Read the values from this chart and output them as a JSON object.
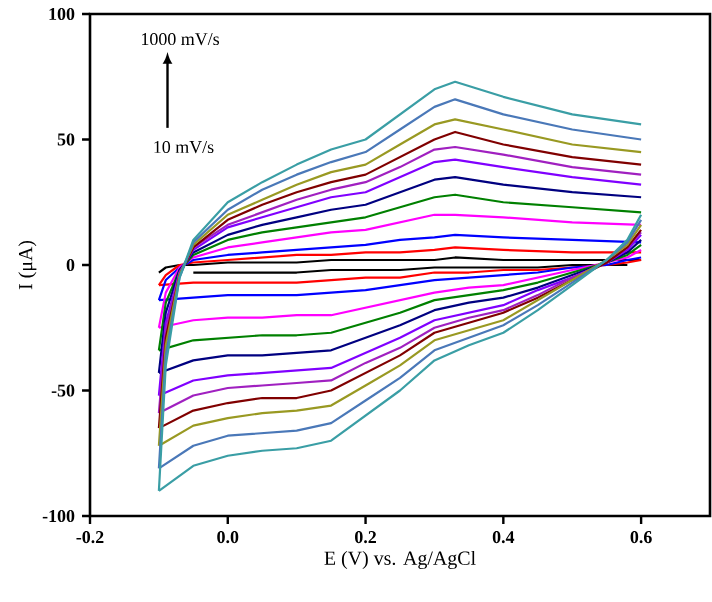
{
  "chart_data": {
    "type": "line",
    "xlabel": "E (V) vs. Ag/AgCl",
    "ylabel": "I (μA)",
    "annotations": [
      "1000 mV/s",
      "10 mV/s"
    ],
    "xlim": [
      -0.2,
      0.7
    ],
    "xticks": [
      {
        "value": -0.2,
        "label": "-0.2"
      },
      {
        "value": 0.0,
        "label": "0.0"
      },
      {
        "value": 0.2,
        "label": "0.2"
      },
      {
        "value": 0.4,
        "label": "0.4"
      },
      {
        "value": 0.6,
        "label": "0.6"
      }
    ],
    "ylim": [
      -100,
      100
    ],
    "yticks": [
      -100,
      -50,
      0,
      50,
      100
    ],
    "grid": false,
    "marker": "none",
    "line_style": "solid",
    "series": [
      {
        "color": "#000000",
        "x": [
          -0.1,
          -0.09,
          -0.07,
          -0.05,
          0,
          0.05,
          0.1,
          0.15,
          0.2,
          0.25,
          0.3,
          0.33,
          0.4,
          0.5,
          0.6
        ],
        "values": [
          -3,
          -1,
          0,
          0,
          1,
          1,
          1,
          2,
          2,
          2,
          2,
          3,
          2,
          2,
          2
        ]
      },
      {
        "color": "#000000",
        "x": [
          -0.05,
          0,
          0.05,
          0.1,
          0.15,
          0.2,
          0.25,
          0.3,
          0.35,
          0.4,
          0.45,
          0.5,
          0.55,
          0.58
        ],
        "values": [
          -3,
          -3,
          -3,
          -3,
          -2,
          -2,
          -2,
          -1,
          -1,
          -1,
          -1,
          0,
          0,
          0
        ]
      },
      {
        "color": "#ff0000",
        "x": [
          -0.1,
          -0.09,
          -0.07,
          -0.05,
          0,
          0.05,
          0.1,
          0.15,
          0.2,
          0.25,
          0.3,
          0.33,
          0.4,
          0.5,
          0.6
        ],
        "values": [
          -8,
          -4,
          0,
          1,
          2,
          3,
          4,
          4,
          5,
          5,
          6,
          7,
          6,
          5,
          5
        ]
      },
      {
        "color": "#ff0000",
        "x": [
          -0.1,
          -0.05,
          0,
          0.05,
          0.1,
          0.15,
          0.2,
          0.25,
          0.3,
          0.35,
          0.4,
          0.45,
          0.5,
          0.55,
          0.58,
          0.6
        ],
        "values": [
          -8,
          -7,
          -7,
          -7,
          -7,
          -6,
          -5,
          -5,
          -3,
          -3,
          -2,
          -2,
          -1,
          0,
          1,
          2
        ]
      },
      {
        "color": "#0000ff",
        "x": [
          -0.1,
          -0.09,
          -0.07,
          -0.05,
          0,
          0.05,
          0.1,
          0.15,
          0.2,
          0.25,
          0.3,
          0.33,
          0.4,
          0.5,
          0.6
        ],
        "values": [
          -14,
          -6,
          -1,
          2,
          4,
          5,
          6,
          7,
          8,
          10,
          11,
          12,
          11,
          10,
          9
        ]
      },
      {
        "color": "#0000ff",
        "x": [
          -0.1,
          -0.05,
          0,
          0.05,
          0.1,
          0.15,
          0.2,
          0.25,
          0.3,
          0.35,
          0.4,
          0.45,
          0.5,
          0.55,
          0.58,
          0.6
        ],
        "values": [
          -14,
          -13,
          -12,
          -12,
          -12,
          -11,
          -10,
          -8,
          -6,
          -5,
          -4,
          -3,
          -1,
          0,
          2,
          3
        ]
      },
      {
        "color": "#ff00ff",
        "x": [
          -0.1,
          -0.09,
          -0.07,
          -0.05,
          0,
          0.05,
          0.1,
          0.15,
          0.2,
          0.25,
          0.3,
          0.33,
          0.4,
          0.5,
          0.6
        ],
        "values": [
          -25,
          -11,
          -1,
          3,
          7,
          9,
          11,
          13,
          14,
          17,
          20,
          20,
          19,
          17,
          16
        ]
      },
      {
        "color": "#ff00ff",
        "x": [
          -0.1,
          -0.05,
          0,
          0.05,
          0.1,
          0.15,
          0.2,
          0.25,
          0.3,
          0.35,
          0.4,
          0.45,
          0.5,
          0.55,
          0.58,
          0.6
        ],
        "values": [
          -25,
          -22,
          -21,
          -21,
          -20,
          -20,
          -17,
          -14,
          -11,
          -9,
          -8,
          -5,
          -2,
          1,
          3,
          6
        ]
      },
      {
        "color": "#008000",
        "x": [
          -0.1,
          -0.09,
          -0.07,
          -0.05,
          0,
          0.05,
          0.1,
          0.15,
          0.2,
          0.25,
          0.3,
          0.33,
          0.4,
          0.5,
          0.6
        ],
        "values": [
          -34,
          -15,
          -2,
          4,
          10,
          13,
          15,
          17,
          19,
          23,
          27,
          28,
          25,
          23,
          21
        ]
      },
      {
        "color": "#008000",
        "x": [
          -0.1,
          -0.05,
          0,
          0.05,
          0.1,
          0.15,
          0.2,
          0.25,
          0.3,
          0.35,
          0.4,
          0.45,
          0.5,
          0.55,
          0.58,
          0.6
        ],
        "values": [
          -34,
          -30,
          -29,
          -28,
          -28,
          -27,
          -23,
          -19,
          -14,
          -12,
          -10,
          -7,
          -3,
          1,
          4,
          8
        ]
      },
      {
        "color": "#000080",
        "x": [
          -0.1,
          -0.09,
          -0.07,
          -0.05,
          0,
          0.05,
          0.1,
          0.15,
          0.2,
          0.25,
          0.3,
          0.33,
          0.4,
          0.5,
          0.6
        ],
        "values": [
          -43,
          -19,
          -2,
          5,
          12,
          16,
          19,
          22,
          24,
          29,
          34,
          35,
          32,
          29,
          27
        ]
      },
      {
        "color": "#000080",
        "x": [
          -0.1,
          -0.05,
          0,
          0.05,
          0.1,
          0.15,
          0.2,
          0.25,
          0.3,
          0.35,
          0.4,
          0.45,
          0.5,
          0.55,
          0.58,
          0.6
        ],
        "values": [
          -43,
          -38,
          -36,
          -36,
          -35,
          -34,
          -29,
          -24,
          -18,
          -15,
          -13,
          -9,
          -4,
          1,
          5,
          10
        ]
      },
      {
        "color": "#8000ff",
        "x": [
          -0.1,
          -0.09,
          -0.07,
          -0.05,
          0,
          0.05,
          0.1,
          0.15,
          0.2,
          0.25,
          0.3,
          0.33,
          0.4,
          0.5,
          0.6
        ],
        "values": [
          -52,
          -23,
          -3,
          6,
          15,
          19,
          23,
          27,
          29,
          35,
          41,
          42,
          39,
          35,
          32
        ]
      },
      {
        "color": "#8000ff",
        "x": [
          -0.1,
          -0.05,
          0,
          0.05,
          0.1,
          0.15,
          0.2,
          0.25,
          0.3,
          0.35,
          0.4,
          0.45,
          0.5,
          0.55,
          0.58,
          0.6
        ],
        "values": [
          -52,
          -46,
          -44,
          -43,
          -42,
          -41,
          -35,
          -29,
          -22,
          -19,
          -16,
          -10,
          -5,
          1,
          6,
          12
        ]
      },
      {
        "color": "#a020c0",
        "x": [
          -0.1,
          -0.09,
          -0.07,
          -0.05,
          0,
          0.05,
          0.1,
          0.15,
          0.2,
          0.25,
          0.3,
          0.33,
          0.4,
          0.5,
          0.6
        ],
        "values": [
          -59,
          -26,
          -3,
          7,
          16,
          21,
          26,
          30,
          33,
          39,
          46,
          47,
          44,
          39,
          36
        ]
      },
      {
        "color": "#a020c0",
        "x": [
          -0.1,
          -0.05,
          0,
          0.05,
          0.1,
          0.15,
          0.2,
          0.25,
          0.3,
          0.35,
          0.4,
          0.45,
          0.5,
          0.55,
          0.58,
          0.6
        ],
        "values": [
          -59,
          -52,
          -49,
          -48,
          -47,
          -46,
          -39,
          -33,
          -25,
          -21,
          -18,
          -12,
          -5,
          1,
          7,
          13
        ]
      },
      {
        "color": "#800000",
        "x": [
          -0.1,
          -0.09,
          -0.07,
          -0.05,
          0,
          0.05,
          0.1,
          0.15,
          0.2,
          0.25,
          0.3,
          0.33,
          0.4,
          0.5,
          0.6
        ],
        "values": [
          -65,
          -29,
          -4,
          7,
          18,
          24,
          29,
          33,
          36,
          43,
          50,
          53,
          48,
          43,
          40
        ]
      },
      {
        "color": "#800000",
        "x": [
          -0.1,
          -0.05,
          0,
          0.05,
          0.1,
          0.15,
          0.2,
          0.25,
          0.3,
          0.35,
          0.4,
          0.45,
          0.5,
          0.55,
          0.58,
          0.6
        ],
        "values": [
          -65,
          -58,
          -55,
          -53,
          -53,
          -50,
          -43,
          -36,
          -27,
          -23,
          -19,
          -13,
          -6,
          1,
          7,
          14
        ]
      },
      {
        "color": "#999922",
        "x": [
          -0.1,
          -0.09,
          -0.07,
          -0.05,
          0,
          0.05,
          0.1,
          0.15,
          0.2,
          0.25,
          0.3,
          0.33,
          0.4,
          0.5,
          0.6
        ],
        "values": [
          -72,
          -32,
          -4,
          8,
          20,
          26,
          32,
          37,
          40,
          48,
          56,
          58,
          54,
          48,
          45
        ]
      },
      {
        "color": "#999922",
        "x": [
          -0.1,
          -0.05,
          0,
          0.05,
          0.1,
          0.15,
          0.2,
          0.25,
          0.3,
          0.35,
          0.4,
          0.45,
          0.5,
          0.55,
          0.58,
          0.6
        ],
        "values": [
          -72,
          -64,
          -61,
          -59,
          -58,
          -56,
          -48,
          -40,
          -30,
          -26,
          -22,
          -14,
          -6,
          2,
          8,
          16
        ]
      },
      {
        "color": "#4a78b8",
        "x": [
          -0.1,
          -0.09,
          -0.07,
          -0.05,
          0,
          0.05,
          0.1,
          0.15,
          0.2,
          0.25,
          0.3,
          0.33,
          0.4,
          0.5,
          0.6
        ],
        "values": [
          -81,
          -36,
          -5,
          9,
          22,
          30,
          36,
          41,
          45,
          54,
          63,
          66,
          60,
          54,
          50
        ]
      },
      {
        "color": "#4a78b8",
        "x": [
          -0.1,
          -0.05,
          0,
          0.05,
          0.1,
          0.15,
          0.2,
          0.25,
          0.3,
          0.35,
          0.4,
          0.45,
          0.5,
          0.55,
          0.58,
          0.6
        ],
        "values": [
          -81,
          -72,
          -68,
          -67,
          -66,
          -63,
          -54,
          -45,
          -34,
          -29,
          -24,
          -16,
          -7,
          2,
          9,
          18
        ]
      },
      {
        "color": "#3a9ea5",
        "x": [
          -0.1,
          -0.09,
          -0.07,
          -0.05,
          0,
          0.05,
          0.1,
          0.15,
          0.2,
          0.25,
          0.3,
          0.33,
          0.4,
          0.5,
          0.6
        ],
        "values": [
          -90,
          -40,
          -5,
          10,
          25,
          33,
          40,
          46,
          50,
          60,
          70,
          73,
          67,
          60,
          56
        ]
      },
      {
        "color": "#3a9ea5",
        "x": [
          -0.1,
          -0.05,
          0,
          0.05,
          0.1,
          0.15,
          0.2,
          0.25,
          0.3,
          0.35,
          0.4,
          0.45,
          0.5,
          0.55,
          0.58,
          0.6
        ],
        "values": [
          -90,
          -80,
          -76,
          -74,
          -73,
          -70,
          -60,
          -50,
          -38,
          -32,
          -27,
          -18,
          -8,
          2,
          10,
          20
        ]
      }
    ]
  }
}
